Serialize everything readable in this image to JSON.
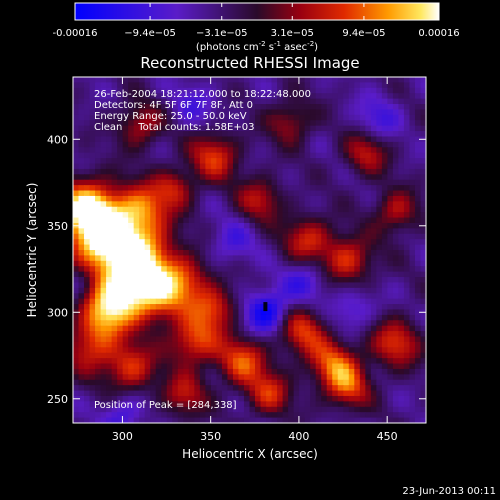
{
  "chart_data": {
    "type": "heatmap",
    "title": "Reconstructed RHESSI Image",
    "xlabel": "Heliocentric X (arcsec)",
    "ylabel": "Heliocentric Y (arcsec)",
    "xlim": [
      272,
      472
    ],
    "ylim": [
      236,
      436
    ],
    "xticks": [
      300,
      350,
      400,
      450
    ],
    "yticks": [
      250,
      300,
      350,
      400
    ],
    "grid": false,
    "colormap": "rainbow-hot (blue-purple-red-orange-yellow-white)",
    "colorbar": {
      "range": [
        -0.00016,
        0.00016
      ],
      "tick_values": [
        -0.00016,
        -9.4e-05,
        -3.1e-05,
        3.1e-05,
        9.4e-05,
        0.00016
      ],
      "tick_labels": [
        "-0.00016",
        "−9.4e−05",
        "−3.1e−05",
        "3.1e−05",
        "9.4e−05",
        "0.00016"
      ],
      "unit_text": "(photons cm",
      "unit_sup1": "-2",
      "unit_mid": " s",
      "unit_sup2": "-1",
      "unit_end": " asec",
      "unit_sup3": "-2",
      "unit_close": ")"
    },
    "annotations": [
      "26-Feb-2004 18:21:12.000 to 18:22:48.000",
      "Detectors: 4F 5F 6F 7F 8F, Att 0",
      "Energy Range: 25.0 - 50.0 keV",
      "Clean     Total counts: 1.58E+03"
    ],
    "peak_label": "Position of Peak = [284,338]",
    "peak": [
      284,
      338
    ],
    "blobs": [
      {
        "x": 290,
        "y": 342,
        "amp": 1.0,
        "s": 14
      },
      {
        "x": 280,
        "y": 360,
        "amp": 0.85,
        "s": 12
      },
      {
        "x": 312,
        "y": 330,
        "amp": 0.75,
        "s": 13
      },
      {
        "x": 300,
        "y": 312,
        "amp": 0.7,
        "s": 12
      },
      {
        "x": 320,
        "y": 308,
        "amp": 0.55,
        "s": 11
      },
      {
        "x": 290,
        "y": 298,
        "amp": 0.55,
        "s": 10
      },
      {
        "x": 312,
        "y": 360,
        "amp": 0.6,
        "s": 11
      },
      {
        "x": 336,
        "y": 318,
        "amp": 0.5,
        "s": 10
      },
      {
        "x": 352,
        "y": 302,
        "amp": 0.55,
        "s": 9
      },
      {
        "x": 282,
        "y": 280,
        "amp": 0.5,
        "s": 11
      },
      {
        "x": 305,
        "y": 268,
        "amp": 0.55,
        "s": 10
      },
      {
        "x": 340,
        "y": 283,
        "amp": 0.6,
        "s": 10
      },
      {
        "x": 368,
        "y": 272,
        "amp": 0.6,
        "s": 10
      },
      {
        "x": 402,
        "y": 290,
        "amp": 0.55,
        "s": 10
      },
      {
        "x": 420,
        "y": 270,
        "amp": 0.6,
        "s": 10
      },
      {
        "x": 455,
        "y": 282,
        "amp": 0.55,
        "s": 10
      },
      {
        "x": 428,
        "y": 256,
        "amp": 0.5,
        "s": 9
      },
      {
        "x": 383,
        "y": 253,
        "amp": 0.5,
        "s": 9
      },
      {
        "x": 335,
        "y": 252,
        "amp": 0.45,
        "s": 9
      },
      {
        "x": 352,
        "y": 390,
        "amp": 0.55,
        "s": 10
      },
      {
        "x": 378,
        "y": 365,
        "amp": 0.45,
        "s": 9
      },
      {
        "x": 405,
        "y": 342,
        "amp": 0.5,
        "s": 10
      },
      {
        "x": 428,
        "y": 330,
        "amp": 0.55,
        "s": 10
      },
      {
        "x": 455,
        "y": 358,
        "amp": 0.45,
        "s": 9
      },
      {
        "x": 438,
        "y": 392,
        "amp": 0.45,
        "s": 9
      },
      {
        "x": 395,
        "y": 410,
        "amp": 0.4,
        "s": 9
      },
      {
        "x": 310,
        "y": 408,
        "amp": 0.45,
        "s": 9
      },
      {
        "x": 330,
        "y": 372,
        "amp": 0.4,
        "s": 8
      }
    ],
    "dips": [
      {
        "x": 382,
        "y": 300,
        "amp": 0.9,
        "s": 9
      },
      {
        "x": 404,
        "y": 318,
        "amp": 0.5,
        "s": 9
      },
      {
        "x": 430,
        "y": 302,
        "amp": 0.45,
        "s": 9
      },
      {
        "x": 300,
        "y": 240,
        "amp": 0.5,
        "s": 8
      },
      {
        "x": 445,
        "y": 412,
        "amp": 0.45,
        "s": 9
      },
      {
        "x": 340,
        "y": 420,
        "amp": 0.35,
        "s": 9
      },
      {
        "x": 362,
        "y": 340,
        "amp": 0.4,
        "s": 9
      },
      {
        "x": 275,
        "y": 318,
        "amp": 0.35,
        "s": 7
      }
    ]
  },
  "footer": {
    "timestamp": "23-Jun-2013 00:11"
  }
}
